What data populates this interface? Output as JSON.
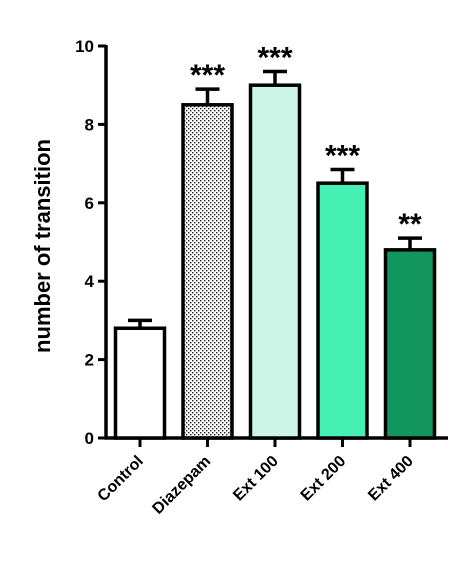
{
  "chart_data": {
    "type": "bar",
    "title": "",
    "xlabel": "",
    "ylabel": "number of transition",
    "ylim": [
      0,
      10
    ],
    "yticks": [
      "0",
      "2",
      "4",
      "6",
      "8",
      "10"
    ],
    "categories": [
      "Control",
      "Diazepam",
      "Ext 100",
      "Ext 200",
      "Ext 400"
    ],
    "values": [
      2.8,
      8.5,
      9.0,
      6.5,
      4.8
    ],
    "errors": [
      0.2,
      0.4,
      0.35,
      0.35,
      0.3
    ],
    "significance": [
      "",
      "***",
      "***",
      "***",
      "**"
    ],
    "colors": [
      "#ffffff",
      "pattern-dots",
      "#ccf5e8",
      "#46f0b4",
      "#12955e"
    ],
    "grid": false,
    "legend": "none"
  }
}
